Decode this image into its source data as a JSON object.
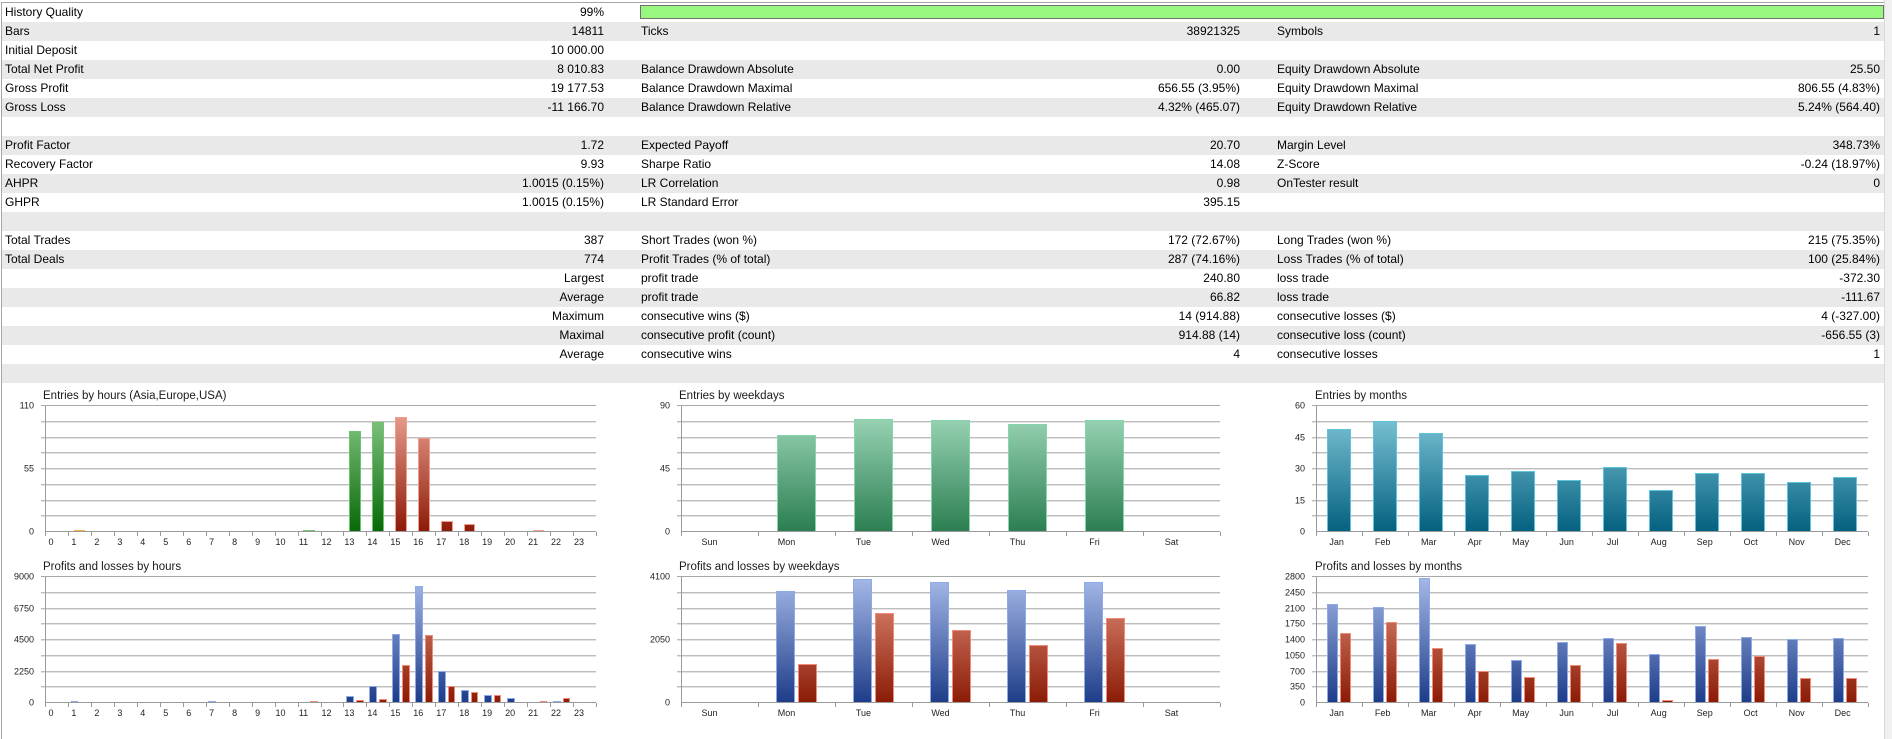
{
  "colors": {
    "row": "#ffffff",
    "row_alt": "#e9e9e9",
    "quality_bar_fill": "#98f77f",
    "quality_bar_border": "#6f6f6f"
  },
  "report": {
    "quality_percent": 99,
    "rows": [
      {
        "quality_bar": true,
        "cells": [
          {
            "label": "History Quality",
            "value": "99%"
          }
        ]
      },
      {
        "cells": [
          {
            "label": "Bars",
            "value": "14811"
          },
          {
            "label": "Ticks",
            "value": "38921325"
          },
          {
            "label": "Symbols",
            "value": "1"
          }
        ]
      },
      {
        "cells": [
          {
            "label": "Initial Deposit",
            "value": "10 000.00"
          }
        ]
      },
      {
        "cells": [
          {
            "label": "Total Net Profit",
            "value": "8 010.83"
          },
          {
            "label": "Balance Drawdown Absolute",
            "value": "0.00"
          },
          {
            "label": "Equity Drawdown Absolute",
            "value": "25.50"
          }
        ]
      },
      {
        "cells": [
          {
            "label": "Gross Profit",
            "value": "19 177.53"
          },
          {
            "label": "Balance Drawdown Maximal",
            "value": "656.55 (3.95%)"
          },
          {
            "label": "Equity Drawdown Maximal",
            "value": "806.55 (4.83%)"
          }
        ]
      },
      {
        "cells": [
          {
            "label": "Gross Loss",
            "value": "-11 166.70"
          },
          {
            "label": "Balance Drawdown Relative",
            "value": "4.32% (465.07)"
          },
          {
            "label": "Equity Drawdown Relative",
            "value": "5.24% (564.40)"
          }
        ]
      },
      {
        "cells": []
      },
      {
        "cells": [
          {
            "label": "Profit Factor",
            "value": "1.72"
          },
          {
            "label": "Expected Payoff",
            "value": "20.70"
          },
          {
            "label": "Margin Level",
            "value": "348.73%"
          }
        ]
      },
      {
        "cells": [
          {
            "label": "Recovery Factor",
            "value": "9.93"
          },
          {
            "label": "Sharpe Ratio",
            "value": "14.08"
          },
          {
            "label": "Z-Score",
            "value": "-0.24 (18.97%)"
          }
        ]
      },
      {
        "cells": [
          {
            "label": "AHPR",
            "value": "1.0015 (0.15%)"
          },
          {
            "label": "LR Correlation",
            "value": "0.98"
          },
          {
            "label": "OnTester result",
            "value": "0"
          }
        ]
      },
      {
        "cells": [
          {
            "label": "GHPR",
            "value": "1.0015 (0.15%)"
          },
          {
            "label": "LR Standard Error",
            "value": "395.15"
          }
        ]
      },
      {
        "cells": []
      },
      {
        "cells": [
          {
            "label": "Total Trades",
            "value": "387"
          },
          {
            "label": "Short Trades (won %)",
            "value": "172 (72.67%)"
          },
          {
            "label": "Long Trades (won %)",
            "value": "215 (75.35%)"
          }
        ]
      },
      {
        "cells": [
          {
            "label": "Total Deals",
            "value": "774"
          },
          {
            "label": "Profit Trades (% of total)",
            "value": "287 (74.16%)"
          },
          {
            "label": "Loss Trades (% of total)",
            "value": "100 (25.84%)"
          }
        ]
      },
      {
        "cells": [
          {
            "label": "",
            "value": "Largest"
          },
          {
            "label": "profit trade",
            "value": "240.80"
          },
          {
            "label": "loss trade",
            "value": "-372.30"
          }
        ]
      },
      {
        "cells": [
          {
            "label": "",
            "value": "Average"
          },
          {
            "label": "profit trade",
            "value": "66.82"
          },
          {
            "label": "loss trade",
            "value": "-111.67"
          }
        ]
      },
      {
        "cells": [
          {
            "label": "",
            "value": "Maximum"
          },
          {
            "label": "consecutive wins ($)",
            "value": "14 (914.88)"
          },
          {
            "label": "consecutive losses ($)",
            "value": "4 (-327.00)"
          }
        ]
      },
      {
        "cells": [
          {
            "label": "",
            "value": "Maximal"
          },
          {
            "label": "consecutive profit (count)",
            "value": "914.88 (14)"
          },
          {
            "label": "consecutive loss (count)",
            "value": "-656.55 (3)"
          }
        ]
      },
      {
        "cells": [
          {
            "label": "",
            "value": "Average"
          },
          {
            "label": "consecutive wins",
            "value": "4"
          },
          {
            "label": "consecutive losses",
            "value": "1"
          }
        ]
      },
      {
        "cells": []
      }
    ]
  },
  "chart_data": [
    {
      "type": "bar",
      "title": "Entries by hours (Asia,Europe,USA)",
      "xlabel": "",
      "ylabel": "",
      "categories": [
        "0",
        "1",
        "2",
        "3",
        "4",
        "5",
        "6",
        "7",
        "8",
        "9",
        "10",
        "11",
        "12",
        "13",
        "14",
        "15",
        "16",
        "17",
        "18",
        "19",
        "20",
        "21",
        "22",
        "23"
      ],
      "ylim": [
        0,
        110
      ],
      "y_labels": [
        0,
        55,
        110
      ],
      "grid_divisions": 8,
      "series": [
        {
          "key": "entries",
          "name": "Entries",
          "values": [
            0,
            2,
            0,
            0,
            0,
            0,
            0,
            0,
            0,
            0,
            0,
            1,
            0,
            88,
            96,
            100,
            82,
            10,
            7,
            0,
            0,
            1,
            0,
            0
          ],
          "bar_session": [
            "asia",
            "asia",
            "asia",
            "asia",
            "asia",
            "asia",
            "asia",
            "asia",
            "europe",
            "europe",
            "europe",
            "europe",
            "europe",
            "europe",
            "europe",
            "usa",
            "usa",
            "usa",
            "usa",
            "usa",
            "usa",
            "usa",
            "usa",
            "usa"
          ]
        }
      ],
      "session_colors": {
        "asia": {
          "top": "#fbd27a",
          "bottom": "#e08600",
          "border": "#f4b23e"
        },
        "europe": {
          "top": "#8ccc8c",
          "bottom": "#076807",
          "border": "#6fc36f"
        },
        "usa": {
          "top": "#eea595",
          "bottom": "#8c1a07",
          "border": "#f19c8c"
        }
      }
    },
    {
      "type": "bar",
      "title": "Entries by weekdays",
      "xlabel": "",
      "ylabel": "",
      "categories": [
        "Sun",
        "Mon",
        "Tue",
        "Wed",
        "Thu",
        "Fri",
        "Sat"
      ],
      "ylim": [
        0,
        90
      ],
      "y_labels": [
        0,
        45,
        90
      ],
      "grid_divisions": 8,
      "series": [
        {
          "key": "entries",
          "name": "Entries",
          "values": [
            0,
            69,
            81,
            80,
            77,
            80,
            0
          ],
          "color": {
            "top": "#a3dbbd",
            "bottom": "#2b7e51",
            "border": "#86d6ad"
          }
        }
      ]
    },
    {
      "type": "bar",
      "title": "Entries by months",
      "xlabel": "",
      "ylabel": "",
      "categories": [
        "Jan",
        "Feb",
        "Mar",
        "Apr",
        "May",
        "Jun",
        "Jul",
        "Aug",
        "Sep",
        "Oct",
        "Nov",
        "Dec"
      ],
      "ylim": [
        0,
        60
      ],
      "y_labels": [
        0,
        15,
        30,
        45,
        60
      ],
      "grid_divisions": 8,
      "series": [
        {
          "key": "entries",
          "name": "Entries",
          "values": [
            49,
            53,
            47,
            27,
            29,
            25,
            31,
            20,
            28,
            28,
            24,
            26
          ],
          "color": {
            "top": "#86cbdc",
            "bottom": "#03607f",
            "border": "#5fc3dd"
          }
        }
      ]
    },
    {
      "type": "bar",
      "title": "Profits and losses by hours",
      "xlabel": "",
      "ylabel": "",
      "categories": [
        "0",
        "1",
        "2",
        "3",
        "4",
        "5",
        "6",
        "7",
        "8",
        "9",
        "10",
        "11",
        "12",
        "13",
        "14",
        "15",
        "16",
        "17",
        "18",
        "19",
        "20",
        "21",
        "22",
        "23"
      ],
      "ylim": [
        0,
        9000
      ],
      "y_labels": [
        0,
        2250,
        4500,
        6750,
        9000
      ],
      "grid_divisions": 8,
      "series": [
        {
          "key": "profit",
          "name": "Profits",
          "values": [
            0,
            90,
            0,
            0,
            0,
            0,
            0,
            90,
            0,
            0,
            0,
            0,
            0,
            520,
            1210,
            4925,
            8335,
            2275,
            945,
            545,
            380,
            0,
            95,
            0
          ],
          "color": {
            "top": "#a6b9e8",
            "bottom": "#1d3c88",
            "border": "#8eaaea"
          }
        },
        {
          "key": "loss",
          "name": "Losses",
          "values": [
            0,
            0,
            0,
            0,
            0,
            0,
            0,
            0,
            0,
            0,
            0,
            165,
            0,
            190,
            285,
            2700,
            4880,
            1230,
            805,
            570,
            0,
            120,
            380,
            0
          ],
          "color": {
            "top": "#e6947f",
            "bottom": "#8a1b06",
            "border": "#f28a78"
          }
        }
      ]
    },
    {
      "type": "bar",
      "title": "Profits and losses by weekdays",
      "xlabel": "",
      "ylabel": "",
      "categories": [
        "Sun",
        "Mon",
        "Tue",
        "Wed",
        "Thu",
        "Fri",
        "Sat"
      ],
      "ylim": [
        0,
        4100
      ],
      "y_labels": [
        0,
        2050,
        4100
      ],
      "grid_divisions": 8,
      "series": [
        {
          "key": "profit",
          "name": "Profits",
          "values": [
            0,
            3645,
            4045,
            3950,
            3690,
            3950,
            0
          ],
          "color": {
            "top": "#a6b9e8",
            "bottom": "#1d3c88",
            "border": "#8eaaea"
          }
        },
        {
          "key": "loss",
          "name": "Losses",
          "values": [
            0,
            1260,
            2925,
            2385,
            1890,
            2775,
            0
          ],
          "color": {
            "top": "#e6947f",
            "bottom": "#8a1b06",
            "border": "#f28a78"
          }
        }
      ]
    },
    {
      "type": "bar",
      "title": "Profits and losses by months",
      "xlabel": "",
      "ylabel": "",
      "categories": [
        "Jan",
        "Feb",
        "Mar",
        "Apr",
        "May",
        "Jun",
        "Jul",
        "Aug",
        "Sep",
        "Oct",
        "Nov",
        "Dec"
      ],
      "ylim": [
        0,
        2800
      ],
      "y_labels": [
        0,
        350,
        700,
        1050,
        1400,
        1750,
        2100,
        2450,
        2800
      ],
      "grid_divisions": 8,
      "series": [
        {
          "key": "profit",
          "name": "Profits",
          "values": [
            2195,
            2130,
            2770,
            1320,
            950,
            1355,
            1450,
            1100,
            1710,
            1475,
            1430,
            1445
          ],
          "color": {
            "top": "#a6b9e8",
            "bottom": "#1d3c88",
            "border": "#8eaaea"
          }
        },
        {
          "key": "loss",
          "name": "Losses",
          "values": [
            1560,
            1800,
            1225,
            715,
            580,
            840,
            1335,
            75,
            980,
            1040,
            545,
            555
          ],
          "color": {
            "top": "#e6947f",
            "bottom": "#8a1b06",
            "border": "#f28a78"
          }
        }
      ]
    }
  ]
}
